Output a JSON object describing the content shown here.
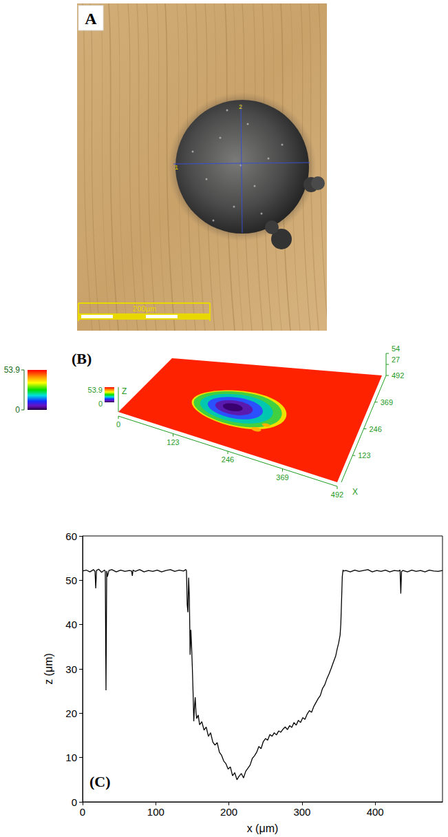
{
  "image_panel": {
    "label": "A",
    "scale_bar": "200μm",
    "crosshair_labels": [
      "1",
      "2"
    ]
  },
  "surface_panel": {
    "label": "(B)",
    "axis_labels": {
      "x": "X",
      "z": "Z"
    },
    "xlim": [
      0,
      492
    ],
    "ylim": [
      0,
      492
    ],
    "zlim": [
      0,
      54
    ],
    "xticks": [
      0,
      123,
      246,
      369,
      492
    ],
    "yticks": [
      123,
      246,
      369,
      492
    ],
    "zticks": [
      27,
      54
    ],
    "colorbar": {
      "range": [
        0,
        53.9
      ],
      "ticks": [
        0,
        53.9
      ]
    }
  },
  "chart_data": {
    "type": "line",
    "annotation": "(C)",
    "xlabel": "x (μm)",
    "ylabel": "z (μm)",
    "color": "#000000",
    "grid": false,
    "xlim": [
      0,
      492
    ],
    "ylim": [
      0,
      60
    ],
    "xticks": [
      0,
      100,
      200,
      300,
      400
    ],
    "yticks": [
      0,
      10,
      20,
      30,
      40,
      50,
      60
    ],
    "x": [
      0,
      5,
      10,
      15,
      17,
      18,
      19,
      22,
      26,
      30,
      31,
      32,
      33,
      34,
      36,
      40,
      46,
      52,
      58,
      64,
      67,
      68,
      69,
      72,
      78,
      84,
      90,
      96,
      102,
      108,
      114,
      120,
      126,
      132,
      138,
      141,
      142,
      143,
      144,
      145,
      146,
      147,
      148,
      149,
      150,
      151,
      152,
      153,
      154,
      155,
      156,
      158,
      160,
      163,
      166,
      169,
      172,
      175,
      178,
      181,
      184,
      187,
      190,
      193,
      196,
      199,
      202,
      205,
      208,
      211,
      214,
      217,
      220,
      223,
      226,
      229,
      232,
      235,
      238,
      241,
      244,
      247,
      250,
      253,
      256,
      259,
      262,
      265,
      268,
      271,
      274,
      277,
      280,
      283,
      286,
      289,
      292,
      295,
      298,
      301,
      304,
      307,
      310,
      313,
      316,
      319,
      322,
      325,
      328,
      331,
      334,
      337,
      340,
      343,
      346,
      348,
      350,
      352,
      353,
      354,
      355,
      356,
      357,
      360,
      366,
      372,
      378,
      384,
      390,
      396,
      402,
      408,
      414,
      420,
      426,
      432,
      434,
      435,
      436,
      438,
      444,
      450,
      456,
      462,
      468,
      474,
      480,
      486,
      492
    ],
    "values": [
      52.1,
      52.3,
      51.9,
      52.4,
      52.0,
      48.2,
      52.2,
      52.5,
      51.8,
      52.3,
      52.0,
      25.2,
      52.1,
      50.8,
      52.2,
      52.4,
      51.9,
      52.3,
      52.0,
      52.2,
      52.1,
      51.0,
      52.3,
      52.0,
      52.4,
      51.9,
      52.2,
      52.0,
      52.3,
      51.9,
      52.2,
      52.4,
      52.0,
      52.3,
      52.1,
      52.4,
      52.2,
      44.5,
      42.8,
      50.6,
      46.0,
      33.2,
      38.8,
      35.0,
      30.5,
      25.0,
      18.2,
      21.5,
      23.6,
      20.2,
      18.8,
      19.6,
      17.4,
      18.1,
      16.2,
      16.9,
      14.8,
      15.6,
      13.5,
      12.8,
      13.4,
      11.2,
      10.5,
      9.2,
      8.6,
      7.4,
      7.9,
      5.9,
      6.6,
      5.0,
      5.8,
      6.4,
      5.4,
      6.9,
      7.6,
      8.3,
      9.8,
      10.4,
      11.2,
      12.5,
      12.0,
      13.6,
      14.3,
      13.9,
      15.2,
      14.8,
      15.6,
      15.1,
      16.0,
      15.7,
      16.4,
      16.9,
      16.3,
      17.2,
      16.8,
      17.9,
      17.3,
      18.4,
      17.9,
      19.0,
      18.6,
      19.8,
      20.6,
      20.2,
      21.5,
      22.4,
      23.3,
      24.0,
      25.6,
      26.4,
      27.8,
      28.9,
      30.2,
      31.6,
      32.9,
      34.5,
      35.8,
      37.6,
      40.1,
      45.3,
      50.8,
      52.3,
      52.1,
      52.2,
      51.9,
      52.3,
      52.0,
      52.2,
      52.4,
      51.9,
      52.2,
      52.0,
      52.3,
      51.9,
      52.2,
      52.1,
      52.3,
      47.0,
      52.0,
      52.2,
      51.9,
      52.3,
      52.0,
      52.2,
      51.9,
      52.3,
      52.1,
      52.0,
      52.2
    ]
  }
}
